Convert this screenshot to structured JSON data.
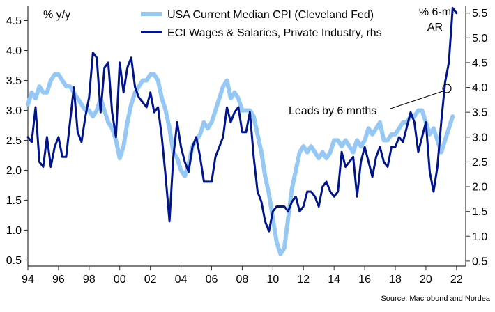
{
  "chart_data": {
    "type": "line",
    "left_axis_label": "% y/y",
    "right_axis_label_line1": "% 6-m",
    "right_axis_label_line2": "AR",
    "source": "Source: Macrobond and Nordea",
    "annotation": "Leads by 6 mnths",
    "x_ticks": [
      "94",
      "96",
      "98",
      "00",
      "02",
      "04",
      "06",
      "08",
      "10",
      "12",
      "14",
      "16",
      "18",
      "20",
      "22"
    ],
    "xlim": [
      1994,
      2022.6
    ],
    "y_left_ticks": [
      "0.5",
      "1.0",
      "1.5",
      "2.0",
      "2.5",
      "3.0",
      "3.5",
      "4.0",
      "4.5"
    ],
    "ylim_left": [
      0.4,
      4.75
    ],
    "y_right_ticks": [
      "0.5",
      "1.0",
      "1.5",
      "2.0",
      "2.5",
      "3.0",
      "3.5",
      "4.0",
      "4.5",
      "5.0",
      "5.5"
    ],
    "ylim_right": [
      0.4,
      5.65
    ],
    "series": [
      {
        "name": "USA Current Median CPI (Cleveland Fed)",
        "axis": "left",
        "color": "#95c8f5",
        "x": [
          1994.0,
          1994.25,
          1994.5,
          1994.75,
          1995.0,
          1995.25,
          1995.5,
          1995.75,
          1996.0,
          1996.25,
          1996.5,
          1996.75,
          1997.0,
          1997.25,
          1997.5,
          1997.75,
          1998.0,
          1998.25,
          1998.5,
          1998.75,
          1999.0,
          1999.25,
          1999.5,
          1999.75,
          2000.0,
          2000.25,
          2000.5,
          2000.75,
          2001.0,
          2001.25,
          2001.5,
          2001.75,
          2002.0,
          2002.25,
          2002.5,
          2002.75,
          2003.0,
          2003.25,
          2003.5,
          2003.75,
          2004.0,
          2004.25,
          2004.5,
          2004.75,
          2005.0,
          2005.25,
          2005.5,
          2005.75,
          2006.0,
          2006.25,
          2006.5,
          2006.75,
          2007.0,
          2007.25,
          2007.5,
          2007.75,
          2008.0,
          2008.25,
          2008.5,
          2008.75,
          2009.0,
          2009.25,
          2009.5,
          2009.75,
          2010.0,
          2010.25,
          2010.5,
          2010.75,
          2011.0,
          2011.25,
          2011.5,
          2011.75,
          2012.0,
          2012.25,
          2012.5,
          2012.75,
          2013.0,
          2013.25,
          2013.5,
          2013.75,
          2014.0,
          2014.25,
          2014.5,
          2014.75,
          2015.0,
          2015.25,
          2015.5,
          2015.75,
          2016.0,
          2016.25,
          2016.5,
          2016.75,
          2017.0,
          2017.25,
          2017.5,
          2017.75,
          2018.0,
          2018.25,
          2018.5,
          2018.75,
          2019.0,
          2019.25,
          2019.5,
          2019.75,
          2020.0,
          2020.25,
          2020.5,
          2020.75,
          2021.0,
          2021.25,
          2021.5,
          2021.75
        ],
        "values": [
          3.1,
          3.3,
          3.2,
          3.4,
          3.3,
          3.3,
          3.5,
          3.6,
          3.6,
          3.5,
          3.4,
          3.4,
          3.3,
          3.2,
          3.1,
          3.0,
          3.0,
          2.9,
          3.0,
          3.2,
          3.0,
          2.8,
          2.7,
          2.5,
          2.2,
          2.4,
          2.8,
          3.1,
          3.3,
          3.4,
          3.5,
          3.5,
          3.6,
          3.6,
          3.5,
          3.2,
          3.0,
          2.7,
          2.3,
          2.2,
          2.0,
          1.9,
          2.1,
          2.4,
          2.5,
          2.6,
          2.8,
          2.7,
          2.8,
          3.0,
          3.2,
          3.4,
          3.5,
          3.2,
          3.3,
          3.2,
          3.0,
          3.0,
          3.0,
          2.9,
          2.6,
          2.3,
          1.9,
          1.6,
          1.2,
          0.8,
          0.6,
          0.7,
          1.2,
          1.7,
          2.0,
          2.3,
          2.4,
          2.3,
          2.4,
          2.3,
          2.2,
          2.3,
          2.2,
          2.3,
          2.5,
          2.5,
          2.4,
          2.5,
          2.4,
          2.3,
          2.5,
          2.4,
          2.5,
          2.7,
          2.6,
          2.7,
          2.8,
          2.5,
          2.5,
          2.6,
          2.6,
          2.7,
          2.8,
          2.8,
          2.9,
          2.9,
          3.0,
          3.0,
          2.8,
          2.6,
          2.7,
          2.5,
          2.3,
          2.5,
          2.7,
          2.9
        ]
      },
      {
        "name": "ECI Wages & Salaries, Private Industry, rhs",
        "axis": "right",
        "color": "#00148c",
        "x": [
          1994.0,
          1994.25,
          1994.5,
          1994.75,
          1995.0,
          1995.25,
          1995.5,
          1995.75,
          1996.0,
          1996.25,
          1996.5,
          1996.75,
          1997.0,
          1997.25,
          1997.5,
          1997.75,
          1998.0,
          1998.25,
          1998.5,
          1998.75,
          1999.0,
          1999.25,
          1999.5,
          1999.75,
          2000.0,
          2000.25,
          2000.5,
          2000.75,
          2001.0,
          2001.25,
          2001.5,
          2001.75,
          2002.0,
          2002.25,
          2002.5,
          2002.75,
          2003.0,
          2003.25,
          2003.5,
          2003.75,
          2004.0,
          2004.25,
          2004.5,
          2004.75,
          2005.0,
          2005.25,
          2005.5,
          2005.75,
          2006.0,
          2006.25,
          2006.5,
          2006.75,
          2007.0,
          2007.25,
          2007.5,
          2007.75,
          2008.0,
          2008.25,
          2008.5,
          2008.75,
          2009.0,
          2009.25,
          2009.5,
          2009.75,
          2010.0,
          2010.25,
          2010.5,
          2010.75,
          2011.0,
          2011.25,
          2011.5,
          2011.75,
          2012.0,
          2012.25,
          2012.5,
          2012.75,
          2013.0,
          2013.25,
          2013.5,
          2013.75,
          2014.0,
          2014.25,
          2014.5,
          2014.75,
          2015.0,
          2015.25,
          2015.5,
          2015.75,
          2016.0,
          2016.25,
          2016.5,
          2016.75,
          2017.0,
          2017.25,
          2017.5,
          2017.75,
          2018.0,
          2018.25,
          2018.5,
          2018.75,
          2019.0,
          2019.25,
          2019.5,
          2019.75,
          2020.0,
          2020.25,
          2020.5,
          2020.75,
          2021.0,
          2021.25,
          2021.5,
          2021.75,
          2022.0
        ],
        "values": [
          3.0,
          2.9,
          3.6,
          2.5,
          2.4,
          3.0,
          2.4,
          2.8,
          3.0,
          2.6,
          2.6,
          3.3,
          4.0,
          3.1,
          2.9,
          3.4,
          3.8,
          4.7,
          4.6,
          3.5,
          4.4,
          4.5,
          3.5,
          3.0,
          4.5,
          3.9,
          4.4,
          4.6,
          4.0,
          3.8,
          3.7,
          3.6,
          3.9,
          3.5,
          3.6,
          3.0,
          2.2,
          1.3,
          2.6,
          3.3,
          2.8,
          2.5,
          2.3,
          2.8,
          3.0,
          2.6,
          2.1,
          2.1,
          2.1,
          2.6,
          2.8,
          3.0,
          3.6,
          3.3,
          3.5,
          3.6,
          3.1,
          3.1,
          3.5,
          2.6,
          1.9,
          1.7,
          1.3,
          1.1,
          1.5,
          1.6,
          1.6,
          1.6,
          1.5,
          1.7,
          1.8,
          1.5,
          1.6,
          1.9,
          1.9,
          1.8,
          1.6,
          2.0,
          2.1,
          1.9,
          1.8,
          1.9,
          2.7,
          2.4,
          2.5,
          2.6,
          1.8,
          2.5,
          2.8,
          2.5,
          2.2,
          2.6,
          2.8,
          2.5,
          2.4,
          2.8,
          2.8,
          3.0,
          2.9,
          3.2,
          3.5,
          3.3,
          2.7,
          3.0,
          3.3,
          2.3,
          1.9,
          2.4,
          3.3,
          4.1,
          4.5,
          5.6,
          5.5
        ]
      }
    ]
  }
}
